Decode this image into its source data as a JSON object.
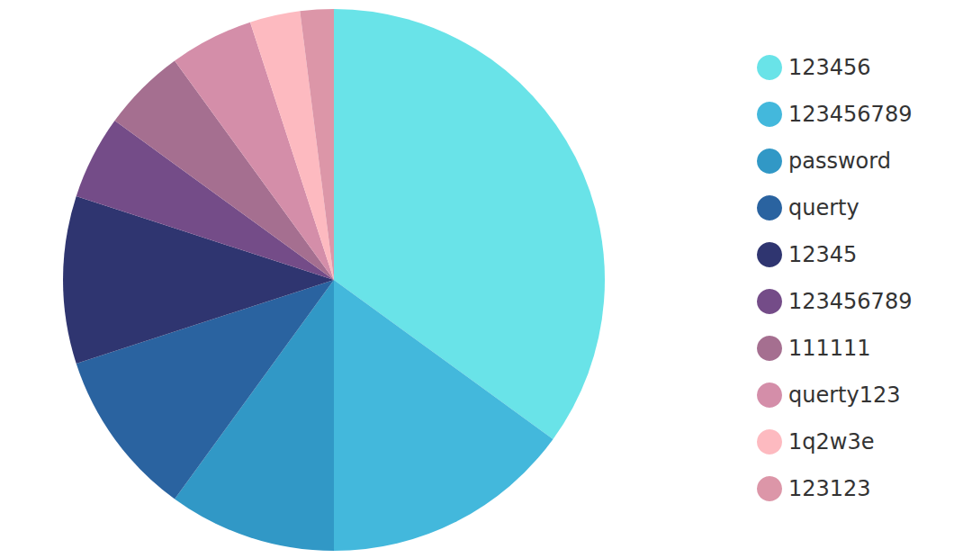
{
  "chart_data": {
    "type": "pie",
    "categories": [
      "123456",
      "123456789",
      "password",
      "querty",
      "12345",
      "123456789",
      "111111",
      "querty123",
      "1q2w3e",
      "123123"
    ],
    "values": [
      35,
      15,
      10,
      10,
      10,
      5,
      5,
      5,
      3,
      2
    ],
    "colors": [
      "#69e3e8",
      "#43b8dc",
      "#3198c6",
      "#2a63a0",
      "#2f3570",
      "#744c88",
      "#a56f90",
      "#d48ea9",
      "#fdbac0",
      "#dc96a8"
    ],
    "legend": "right"
  }
}
